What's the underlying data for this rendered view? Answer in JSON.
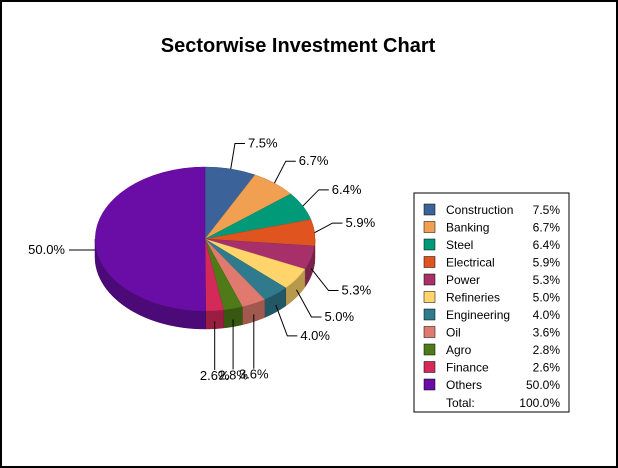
{
  "chart_data": {
    "type": "pie",
    "title": "Sectorwise Investment Chart",
    "legend_position": "right",
    "three_d": true,
    "slices": [
      {
        "label": "Construction",
        "value": 7.5,
        "display": "7.5%",
        "color": "#3B6399"
      },
      {
        "label": "Banking",
        "value": 6.7,
        "display": "6.7%",
        "color": "#F0A050"
      },
      {
        "label": "Steel",
        "value": 6.4,
        "display": "6.4%",
        "color": "#009A78"
      },
      {
        "label": "Electrical",
        "value": 5.9,
        "display": "5.9%",
        "color": "#E0551F"
      },
      {
        "label": "Power",
        "value": 5.3,
        "display": "5.3%",
        "color": "#A8306A"
      },
      {
        "label": "Refineries",
        "value": 5.0,
        "display": "5.0%",
        "color": "#FFD46A"
      },
      {
        "label": "Engineering",
        "value": 4.0,
        "display": "4.0%",
        "color": "#2F7A8C"
      },
      {
        "label": "Oil",
        "value": 3.6,
        "display": "3.6%",
        "color": "#E07A6E"
      },
      {
        "label": "Agro",
        "value": 2.8,
        "display": "2.8%",
        "color": "#4E7A18"
      },
      {
        "label": "Finance",
        "value": 2.6,
        "display": "2.6%",
        "color": "#D42A5A"
      },
      {
        "label": "Others",
        "value": 50.0,
        "display": "50.0%",
        "color": "#6A0CA6"
      }
    ],
    "total_label": "Total:",
    "total_value": "100.0%"
  }
}
